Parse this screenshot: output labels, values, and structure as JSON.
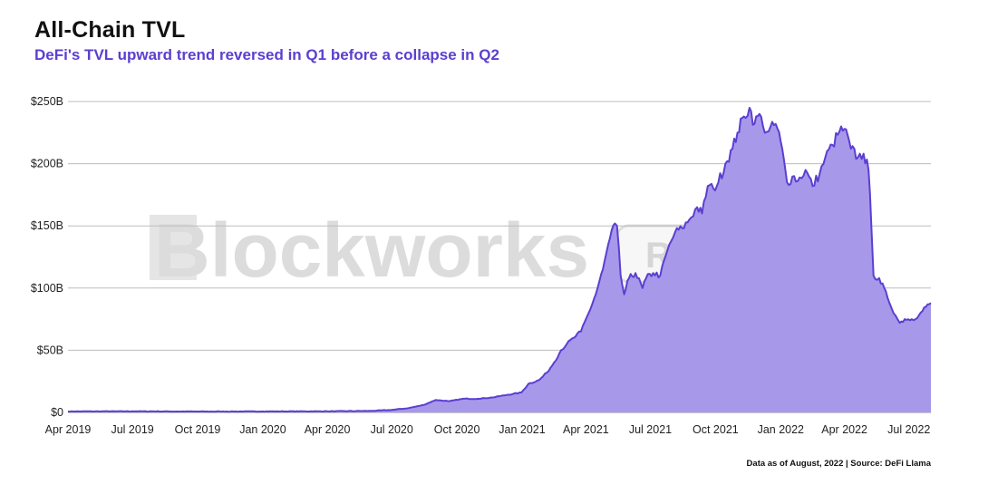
{
  "header": {
    "title": "All-Chain TVL",
    "subtitle": "DeFi's TVL upward trend reversed in Q1 before a collapse in Q2"
  },
  "footer": {
    "source": "Data as of August, 2022 | Source: DeFi Llama"
  },
  "watermark": {
    "brand": "Blockworks",
    "tag": "Research"
  },
  "colors": {
    "line": "#5b3fd0",
    "fill": "#a898ea",
    "grid": "#bdbdbd",
    "subtitle": "#5b3fd0"
  },
  "chart_data": {
    "type": "area",
    "title": "All-Chain TVL",
    "subtitle": "DeFi's TVL upward trend reversed in Q1 before a collapse in Q2",
    "xlabel": "",
    "ylabel": "",
    "ylim": [
      0,
      250
    ],
    "y_unit": "billion USD",
    "y_ticks": [
      0,
      50,
      100,
      150,
      200,
      250
    ],
    "y_tick_labels": [
      "$0",
      "$50B",
      "$100B",
      "$150B",
      "$200B",
      "$250B"
    ],
    "x_tick_labels": [
      "Apr 2019",
      "Jul 2019",
      "Oct 2019",
      "Jan 2020",
      "Apr 2020",
      "Jul 2020",
      "Oct 2020",
      "Jan 2021",
      "Apr 2021",
      "Jul 2021",
      "Oct 2021",
      "Jan 2022",
      "Apr 2022",
      "Jul 2022"
    ],
    "x_range": [
      "2019-04-01",
      "2022-08-01"
    ],
    "grid": "horizontal",
    "legend": "none",
    "series": [
      {
        "x": [
          "2019-04-01",
          "2019-07-01",
          "2019-10-01",
          "2020-01-01",
          "2020-04-01",
          "2020-06-01",
          "2020-07-01",
          "2020-07-25",
          "2020-08-15",
          "2020-09-01",
          "2020-09-20",
          "2020-10-10",
          "2020-10-31",
          "2020-11-20",
          "2020-12-10",
          "2020-12-31",
          "2021-01-10",
          "2021-01-25",
          "2021-02-05",
          "2021-02-15",
          "2021-02-25",
          "2021-03-05",
          "2021-03-15",
          "2021-03-25",
          "2021-04-05",
          "2021-04-15",
          "2021-04-25",
          "2021-05-05",
          "2021-05-12",
          "2021-05-15",
          "2021-05-20",
          "2021-05-25",
          "2021-06-01",
          "2021-06-10",
          "2021-06-20",
          "2021-06-25",
          "2021-07-05",
          "2021-07-15",
          "2021-07-25",
          "2021-08-05",
          "2021-08-15",
          "2021-08-25",
          "2021-09-05",
          "2021-09-12",
          "2021-09-20",
          "2021-09-28",
          "2021-10-05",
          "2021-10-15",
          "2021-10-25",
          "2021-11-01",
          "2021-11-10",
          "2021-11-18",
          "2021-11-25",
          "2021-12-02",
          "2021-12-07",
          "2021-12-15",
          "2021-12-25",
          "2022-01-01",
          "2022-01-10",
          "2022-01-20",
          "2022-01-25",
          "2022-02-05",
          "2022-02-15",
          "2022-02-25",
          "2022-03-05",
          "2022-03-15",
          "2022-03-25",
          "2022-04-01",
          "2022-04-10",
          "2022-04-20",
          "2022-04-28",
          "2022-05-05",
          "2022-05-09",
          "2022-05-12",
          "2022-05-20",
          "2022-06-01",
          "2022-06-12",
          "2022-06-18",
          "2022-06-25",
          "2022-07-05",
          "2022-07-15",
          "2022-07-25",
          "2022-08-01"
        ],
        "values": [
          0.8,
          0.9,
          0.7,
          0.8,
          0.9,
          1.2,
          2.0,
          3.5,
          6,
          10,
          9,
          11,
          11,
          12,
          14,
          16,
          23,
          26,
          32,
          40,
          50,
          55,
          60,
          65,
          80,
          95,
          115,
          140,
          152,
          150,
          110,
          95,
          108,
          112,
          100,
          108,
          112,
          110,
          130,
          145,
          148,
          155,
          165,
          160,
          182,
          180,
          185,
          200,
          212,
          225,
          238,
          245,
          232,
          240,
          230,
          226,
          232,
          218,
          185,
          190,
          186,
          195,
          182,
          192,
          205,
          215,
          226,
          228,
          212,
          205,
          208,
          195,
          150,
          110,
          108,
          92,
          78,
          72,
          75,
          75,
          78,
          85,
          88
        ]
      }
    ]
  }
}
